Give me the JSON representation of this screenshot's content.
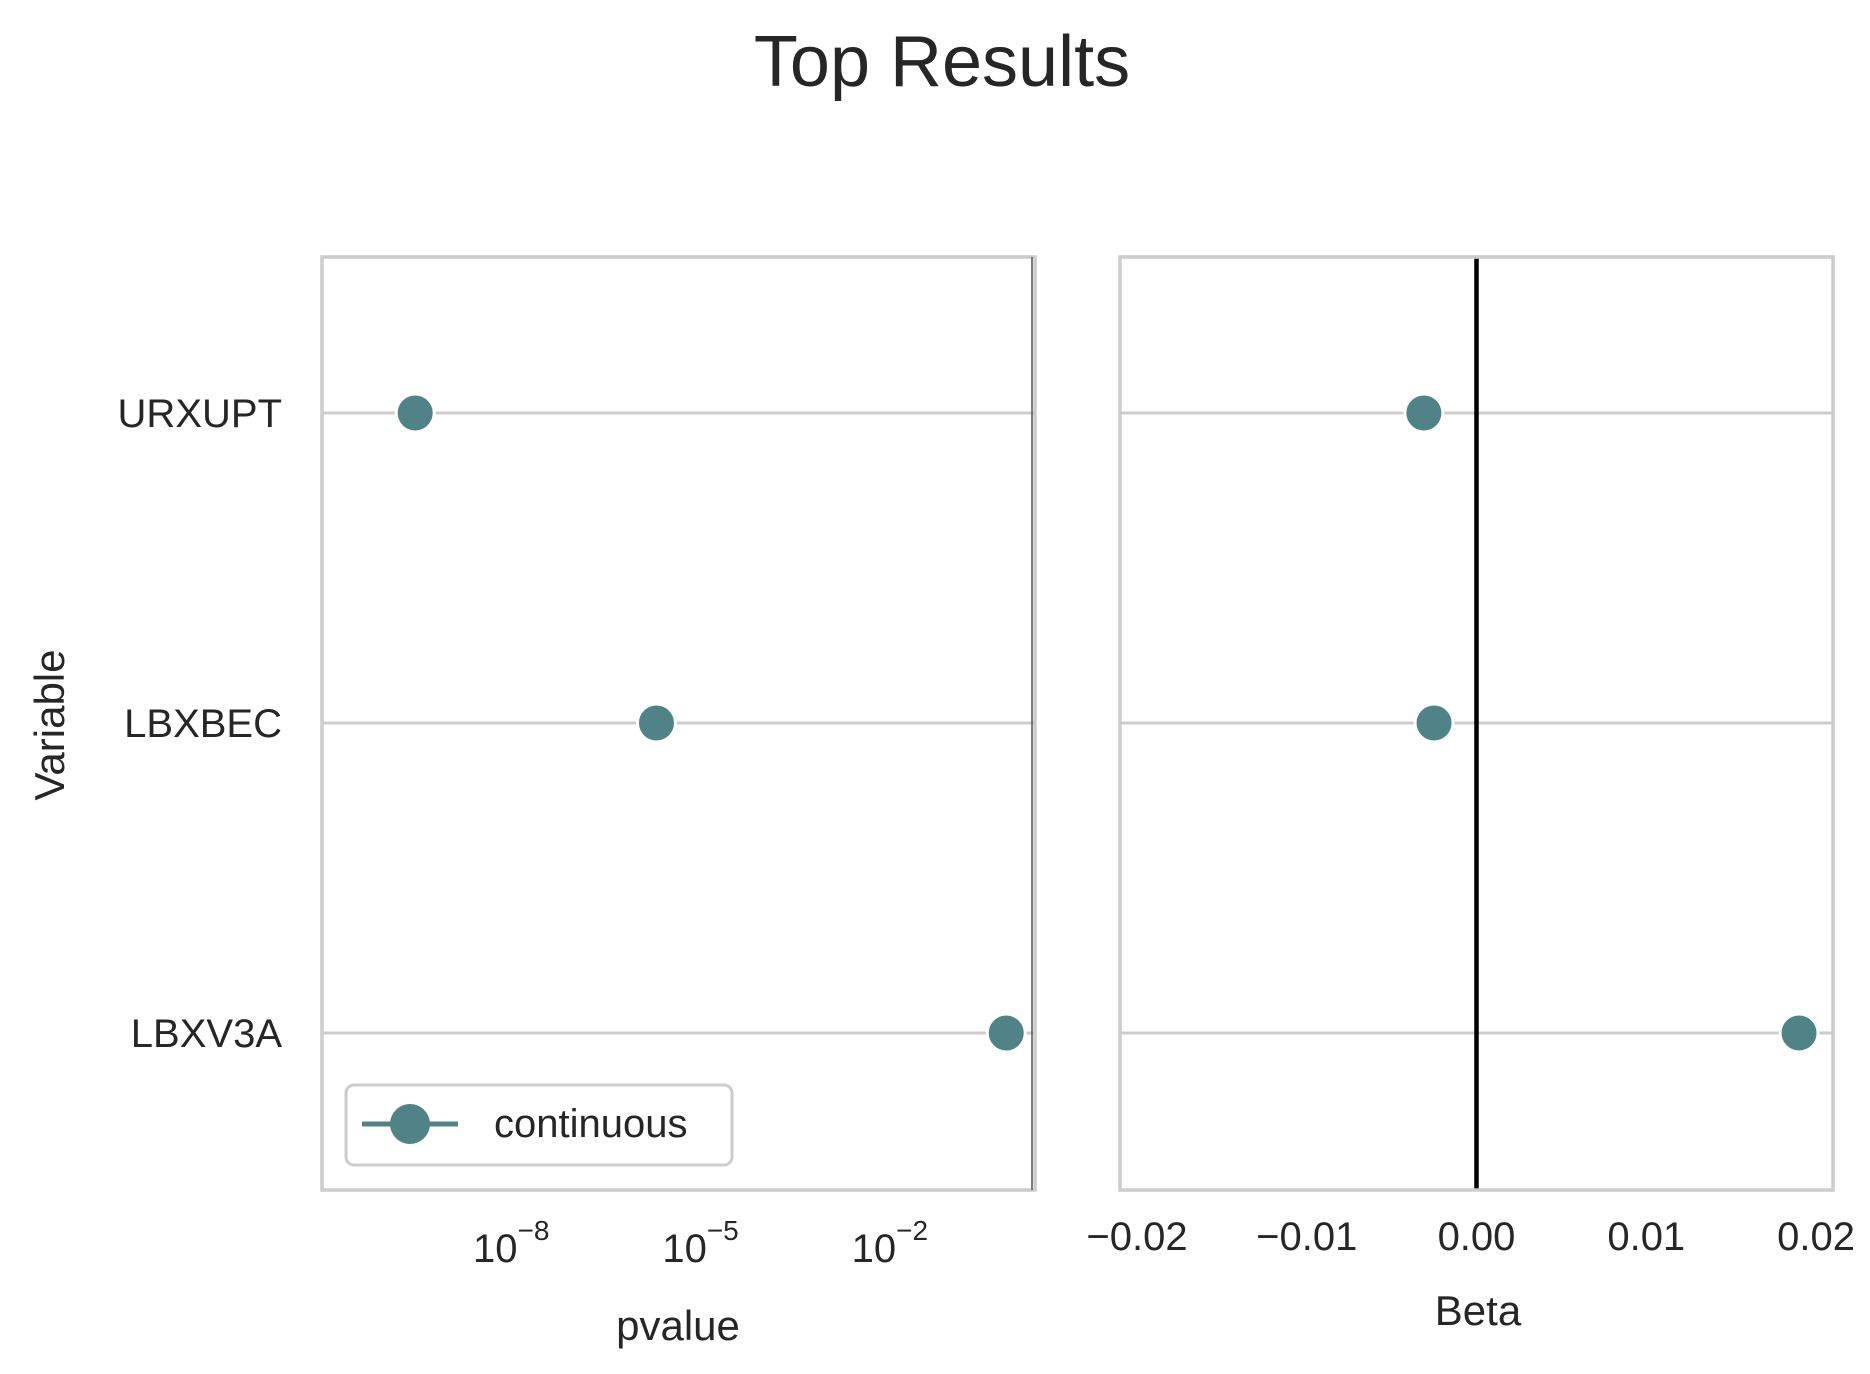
{
  "chart_data": {
    "type": "scatter",
    "title": "Top Results",
    "ylabel": "Variable",
    "categories": [
      "URXUPT",
      "LBXBEC",
      "LBXV3A"
    ],
    "colors": {
      "marker": "#508387",
      "zero_line": "#000000",
      "grid": "#cccccc",
      "frame": "#cccccc"
    },
    "panels": [
      {
        "xlabel": "pvalue",
        "xscale": "log",
        "xlim": [
          1e-11,
          2.0
        ],
        "xticks": [
          {
            "value": 1e-08,
            "base": "10",
            "exp": "−8"
          },
          {
            "value": 1e-05,
            "base": "10",
            "exp": "−5"
          },
          {
            "value": 0.01,
            "base": "10",
            "exp": "−2"
          }
        ],
        "series": [
          {
            "name": "continuous",
            "values": [
              3e-10,
              2e-06,
              0.7
            ]
          }
        ],
        "legend": {
          "placement": "lower-left"
        }
      },
      {
        "xlabel": "Beta",
        "xscale": "linear",
        "xlim": [
          -0.021,
          0.021
        ],
        "xticks": [
          {
            "value": -0.02,
            "label": "−0.02"
          },
          {
            "value": -0.01,
            "label": "−0.01"
          },
          {
            "value": 0.0,
            "label": "0.00"
          },
          {
            "value": 0.01,
            "label": "0.01"
          },
          {
            "value": 0.02,
            "label": "0.02"
          }
        ],
        "reference_line": 0,
        "series": [
          {
            "values": [
              -0.0031,
              -0.0025,
              0.019
            ]
          }
        ]
      }
    ]
  }
}
